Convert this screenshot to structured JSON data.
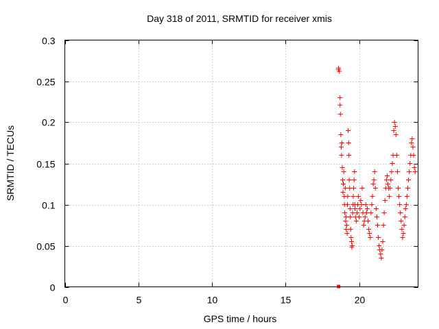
{
  "chart_data": {
    "type": "scatter",
    "title": "Day 318 of 2011, SRMTID for receiver xmis",
    "xlabel": "GPS time / hours",
    "ylabel": "SRMTID / TECUs",
    "xlim": [
      0,
      24
    ],
    "ylim": [
      0,
      0.3
    ],
    "xticks": [
      0,
      5,
      10,
      15,
      20
    ],
    "xtick_labels": [
      "0",
      "5",
      "10",
      "15",
      "20"
    ],
    "yticks": [
      0,
      0.05,
      0.1,
      0.15,
      0.2,
      0.25,
      0.3
    ],
    "ytick_labels": [
      "0",
      "0.05",
      "0.1",
      "0.15",
      "0.2",
      "0.25",
      "0.3"
    ],
    "grid": true,
    "marker": "+",
    "color": "#ff0000",
    "series": [
      {
        "name": "SRMTID",
        "x": [
          18.6,
          18.6,
          18.65,
          18.7,
          18.7,
          18.72,
          18.75,
          18.78,
          18.8,
          18.82,
          18.85,
          18.88,
          18.9,
          18.92,
          18.95,
          18.98,
          19.0,
          19.02,
          19.05,
          19.08,
          19.1,
          19.12,
          19.15,
          19.18,
          19.2,
          19.22,
          19.25,
          19.28,
          19.3,
          19.32,
          19.35,
          19.38,
          19.4,
          19.42,
          19.45,
          19.48,
          19.5,
          19.52,
          19.55,
          19.58,
          19.6,
          19.62,
          19.65,
          19.68,
          19.7,
          19.72,
          19.75,
          19.8,
          19.85,
          19.9,
          19.95,
          20.0,
          20.05,
          20.1,
          20.15,
          20.2,
          20.25,
          20.3,
          20.35,
          20.4,
          20.45,
          20.5,
          20.55,
          20.6,
          20.65,
          20.7,
          20.75,
          20.8,
          20.85,
          20.9,
          20.95,
          21.0,
          21.05,
          21.1,
          21.15,
          21.2,
          21.25,
          21.3,
          21.35,
          21.4,
          21.45,
          21.5,
          21.55,
          21.6,
          21.65,
          21.7,
          21.75,
          21.8,
          21.85,
          21.9,
          21.95,
          22.0,
          22.05,
          22.1,
          22.15,
          22.2,
          22.25,
          22.3,
          22.35,
          22.4,
          22.45,
          22.5,
          22.55,
          22.6,
          22.65,
          22.7,
          22.75,
          22.8,
          22.85,
          22.9,
          22.95,
          23.0,
          23.05,
          23.1,
          23.15,
          23.2,
          23.25,
          23.3,
          23.35,
          23.4,
          23.45,
          23.5,
          23.55,
          23.6,
          23.65,
          23.7,
          23.75,
          23.8
        ],
        "y": [
          0.266,
          0.264,
          0.262,
          0.23,
          0.221,
          0.21,
          0.185,
          0.17,
          0.16,
          0.175,
          0.145,
          0.13,
          0.115,
          0.125,
          0.14,
          0.11,
          0.1,
          0.09,
          0.12,
          0.08,
          0.085,
          0.07,
          0.075,
          0.065,
          0.1,
          0.11,
          0.19,
          0.175,
          0.16,
          0.13,
          0.12,
          0.095,
          0.085,
          0.07,
          0.06,
          0.055,
          0.048,
          0.05,
          0.09,
          0.1,
          0.11,
          0.12,
          0.13,
          0.14,
          0.1,
          0.095,
          0.085,
          0.08,
          0.09,
          0.1,
          0.11,
          0.085,
          0.095,
          0.105,
          0.1,
          0.12,
          0.09,
          0.075,
          0.08,
          0.085,
          0.1,
          0.09,
          0.095,
          0.08,
          0.07,
          0.065,
          0.06,
          0.09,
          0.1,
          0.11,
          0.125,
          0.13,
          0.14,
          0.12,
          0.095,
          0.085,
          0.075,
          0.06,
          0.05,
          0.045,
          0.04,
          0.035,
          0.045,
          0.055,
          0.075,
          0.09,
          0.105,
          0.12,
          0.13,
          0.135,
          0.125,
          0.12,
          0.11,
          0.12,
          0.13,
          0.14,
          0.15,
          0.16,
          0.19,
          0.2,
          0.195,
          0.185,
          0.16,
          0.14,
          0.12,
          0.11,
          0.1,
          0.09,
          0.08,
          0.07,
          0.06,
          0.065,
          0.075,
          0.085,
          0.095,
          0.1,
          0.11,
          0.12,
          0.13,
          0.14,
          0.15,
          0.16,
          0.175,
          0.18,
          0.17,
          0.16,
          0.145,
          0.14
        ]
      }
    ]
  }
}
